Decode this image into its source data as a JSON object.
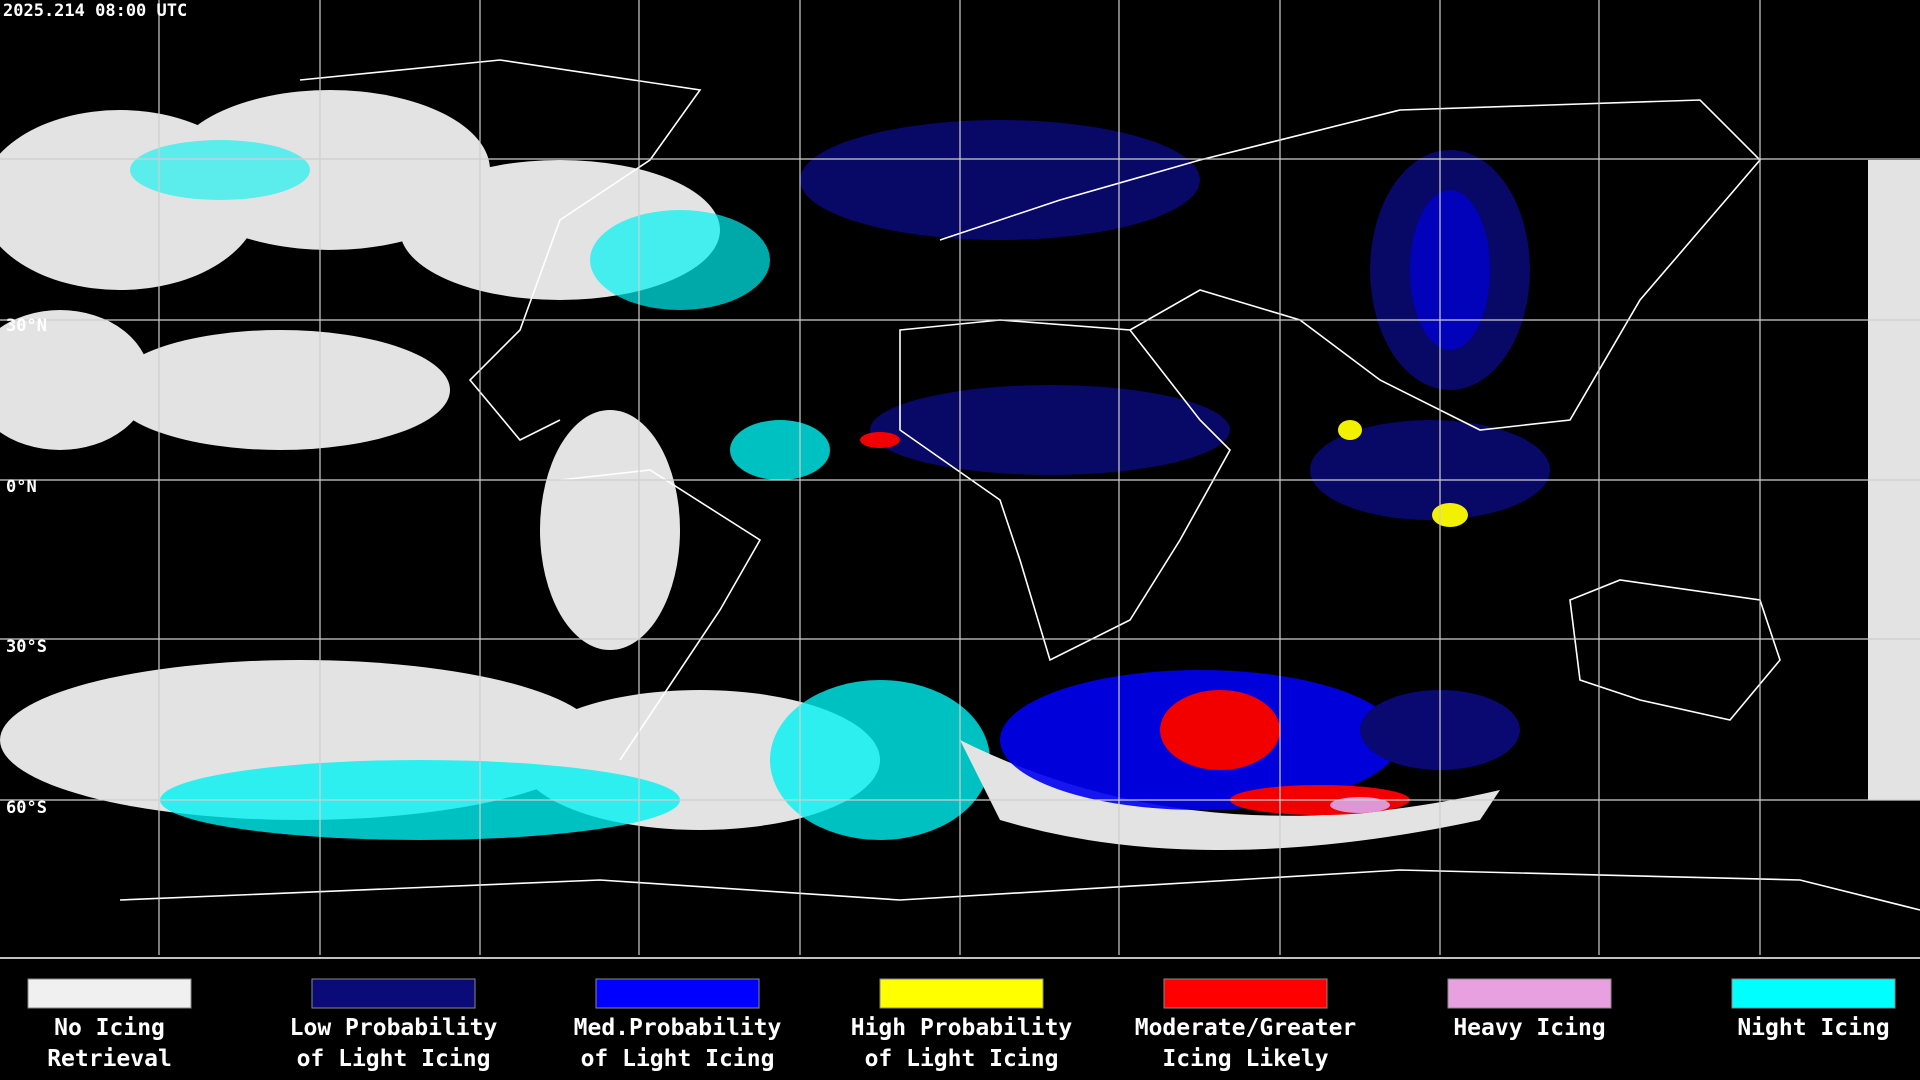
{
  "timestamp": "2025.214 08:00 UTC",
  "latitude_labels": [
    "30°N",
    "0°N",
    "30°S",
    "60°S"
  ],
  "legend": [
    {
      "label_lines": [
        "No Icing",
        "Retrieval"
      ],
      "color": "#f0f0f0"
    },
    {
      "label_lines": [
        "Low Probability",
        "of Light Icing"
      ],
      "color": "#0a0a78"
    },
    {
      "label_lines": [
        "Med.Probability",
        "of Light Icing"
      ],
      "color": "#0000ff"
    },
    {
      "label_lines": [
        "High Probability",
        "of Light Icing"
      ],
      "color": "#ffff00"
    },
    {
      "label_lines": [
        "Moderate/Greater",
        "Icing Likely"
      ],
      "color": "#ff0000"
    },
    {
      "label_lines": [
        "Heavy Icing"
      ],
      "color": "#e8a0e0"
    },
    {
      "label_lines": [
        "Night Icing"
      ],
      "color": "#00ffff"
    }
  ]
}
